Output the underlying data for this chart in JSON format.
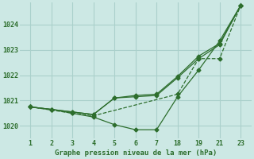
{
  "title": "Graphe pression niveau de la mer (hPa)",
  "bg_color": "#cce8e4",
  "line_color": "#2d6e2d",
  "grid_color": "#aad0cb",
  "xtick_labels": [
    "1",
    "2",
    "3",
    "4",
    "5",
    "6",
    "7",
    "18",
    "19",
    "21",
    "23"
  ],
  "yticks": [
    1020,
    1021,
    1022,
    1023,
    1024
  ],
  "ylim": [
    1019.5,
    1024.85
  ],
  "lines": [
    {
      "x_idx": [
        0,
        1,
        2,
        3,
        4,
        5,
        6,
        7,
        8,
        9,
        10
      ],
      "y": [
        1020.75,
        1020.65,
        1020.5,
        1020.35,
        1020.05,
        1019.85,
        1019.85,
        1021.15,
        1022.2,
        1023.35,
        1024.75
      ],
      "style": "solid"
    },
    {
      "x_idx": [
        0,
        1,
        2,
        3,
        4,
        5,
        6,
        7,
        8,
        9,
        10
      ],
      "y": [
        1020.75,
        1020.65,
        1020.55,
        1020.45,
        1021.1,
        1021.15,
        1021.2,
        1021.9,
        1022.65,
        1023.2,
        1024.75
      ],
      "style": "solid"
    },
    {
      "x_idx": [
        0,
        2,
        3,
        7,
        8,
        9,
        10
      ],
      "y": [
        1020.75,
        1020.5,
        1020.4,
        1021.25,
        1022.65,
        1022.65,
        1024.75
      ],
      "style": "dashed"
    },
    {
      "x_idx": [
        0,
        1,
        2,
        3,
        4,
        5,
        6,
        7,
        8,
        9,
        10
      ],
      "y": [
        1020.75,
        1020.65,
        1020.55,
        1020.45,
        1021.1,
        1021.2,
        1021.25,
        1021.95,
        1022.75,
        1023.25,
        1024.75
      ],
      "style": "solid"
    }
  ]
}
